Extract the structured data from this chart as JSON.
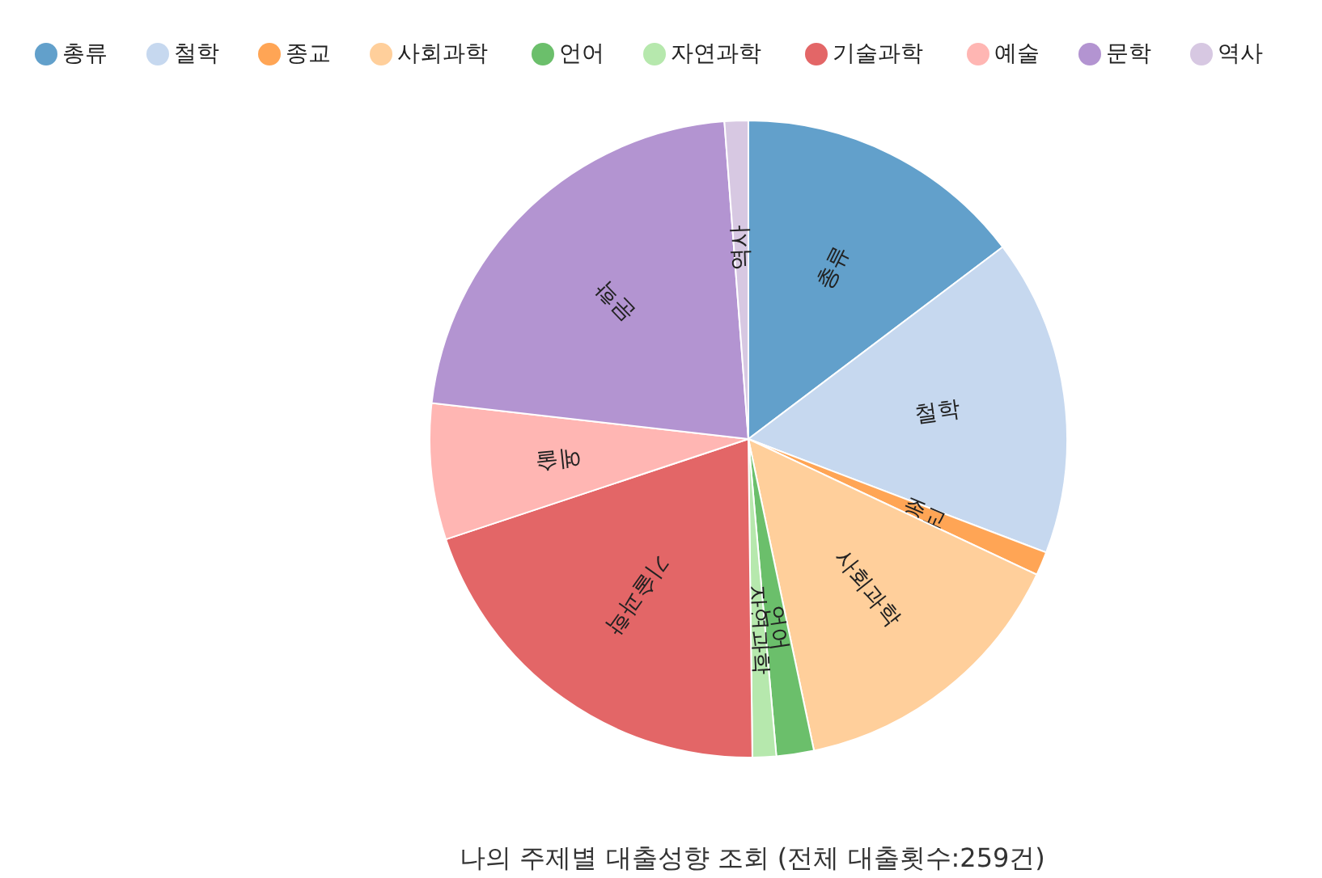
{
  "chart_data": {
    "type": "pie",
    "title": "나의 주제별 대출성향 조회 (전체 대출횟수:259건)",
    "categories": [
      "총류",
      "철학",
      "종교",
      "사회과학",
      "언어",
      "자연과학",
      "기술과학",
      "예술",
      "문학",
      "역사"
    ],
    "values": [
      14.7,
      16.1,
      1.2,
      14.7,
      1.9,
      1.2,
      20.1,
      6.9,
      22.0,
      1.2
    ],
    "colors": [
      "#62a0cb",
      "#c6d8ef",
      "#ffa555",
      "#ffcf9b",
      "#6bbf6b",
      "#b6e8ad",
      "#e36667",
      "#ffb6b3",
      "#b394d1",
      "#d7c8e2"
    ],
    "legend": "top"
  }
}
